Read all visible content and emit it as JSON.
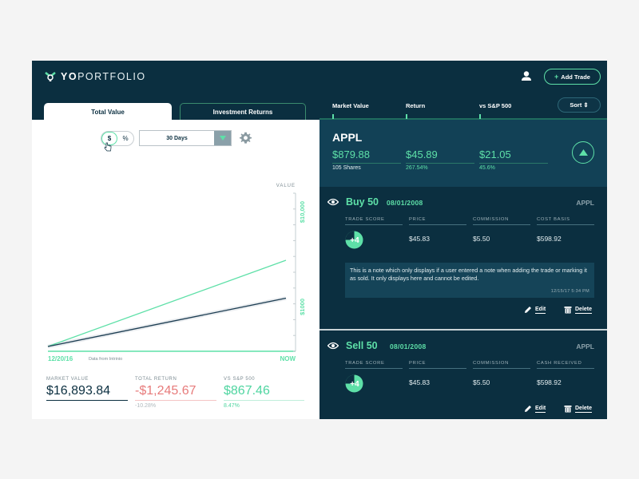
{
  "header": {
    "logo_yo": "YO",
    "logo_portfolio": "PORTFOLIO",
    "add_trade_label": "Add Trade",
    "add_trade_plus": "+"
  },
  "tabs": [
    {
      "label": "Total Value",
      "active": true
    },
    {
      "label": "Investment Returns",
      "active": false
    }
  ],
  "controls": {
    "toggle_options": [
      "$",
      "%"
    ],
    "range_value": "30 Days"
  },
  "columns": {
    "market_value": "Market Value",
    "return": "Return",
    "vs_sp": "vs S&P 500",
    "sort_label": "Sort ⇕"
  },
  "chart_data": {
    "type": "line",
    "xlabel": "",
    "ylabel": "VALUE",
    "x_start_label": "12/20/16",
    "x_end_label": "NOW",
    "source_note": "Data from Intrinio",
    "y_tick_labels": [
      "$10,000",
      "$1000"
    ],
    "series": [
      {
        "color": "#5ee0a8",
        "values": [
          0,
          1
        ]
      },
      {
        "color": "#1c3d52",
        "values": [
          0,
          0.56
        ]
      }
    ]
  },
  "stats": [
    {
      "label": "MARKET VALUE",
      "value": "$16,893.84",
      "sub": ""
    },
    {
      "label": "TOTAL RETURN",
      "value": "-$1,245.67",
      "sub": "-10.28%"
    },
    {
      "label": "VS S&P 500",
      "value": "$867.46",
      "sub": "8.47%"
    }
  ],
  "ticker": {
    "symbol": "APPL",
    "market_value": "$879.88",
    "shares": "105 Shares",
    "return_value": "$45.89",
    "return_pct": "267.54%",
    "vs_sp_value": "$21.05",
    "vs_sp_pct": "45.6%"
  },
  "trades": [
    {
      "title": "Buy 50",
      "date": "08/01/2008",
      "symbol": "APPL",
      "headers": [
        "TRADE SCORE",
        "PRICE",
        "COMMISSION",
        "COST BASIS"
      ],
      "score": "+4",
      "price": "$45.83",
      "commission": "$5.50",
      "last_value": "$598.92",
      "note": "This is a note which only displays if a user entered a note when adding the trade or marking it as sold. It only displays here and cannot be edited.",
      "note_timestamp": "12/15/17  5:34 PM",
      "edit_label": "Edit",
      "delete_label": "Delete"
    },
    {
      "title": "Sell 50",
      "date": "08/01/2008",
      "symbol": "APPL",
      "headers": [
        "TRADE SCORE",
        "PRICE",
        "COMMISSION",
        "CASH RECEIVED"
      ],
      "score": "+4",
      "price": "$45.83",
      "commission": "$5.50",
      "last_value": "$598.92",
      "edit_label": "Edit",
      "delete_label": "Delete"
    }
  ]
}
